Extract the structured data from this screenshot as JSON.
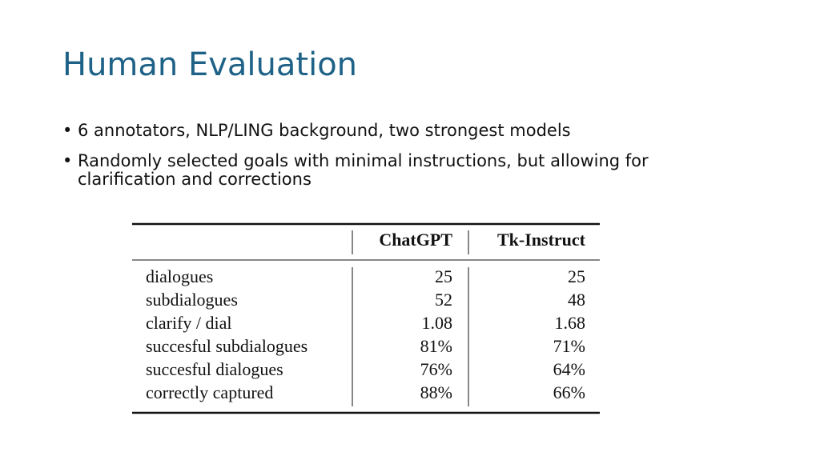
{
  "title": "Human Evaluation",
  "bullets": [
    "6 annotators, NLP/LING background, two strongest models",
    "Randomly selected goals with minimal instructions, but allowing for clarification and corrections"
  ],
  "table": {
    "header": [
      "ChatGPT",
      "Tk-Instruct"
    ],
    "rows": [
      [
        "dialogues",
        "25",
        "25"
      ],
      [
        "subdialogues",
        "52",
        "48"
      ],
      [
        "clarify / dial",
        "1.08",
        "1.68"
      ],
      [
        "succesful subdialogues",
        "81%",
        "71%"
      ],
      [
        "succesful dialogues",
        "76%",
        "64%"
      ],
      [
        "correctly captured",
        "88%",
        "66%"
      ]
    ]
  }
}
